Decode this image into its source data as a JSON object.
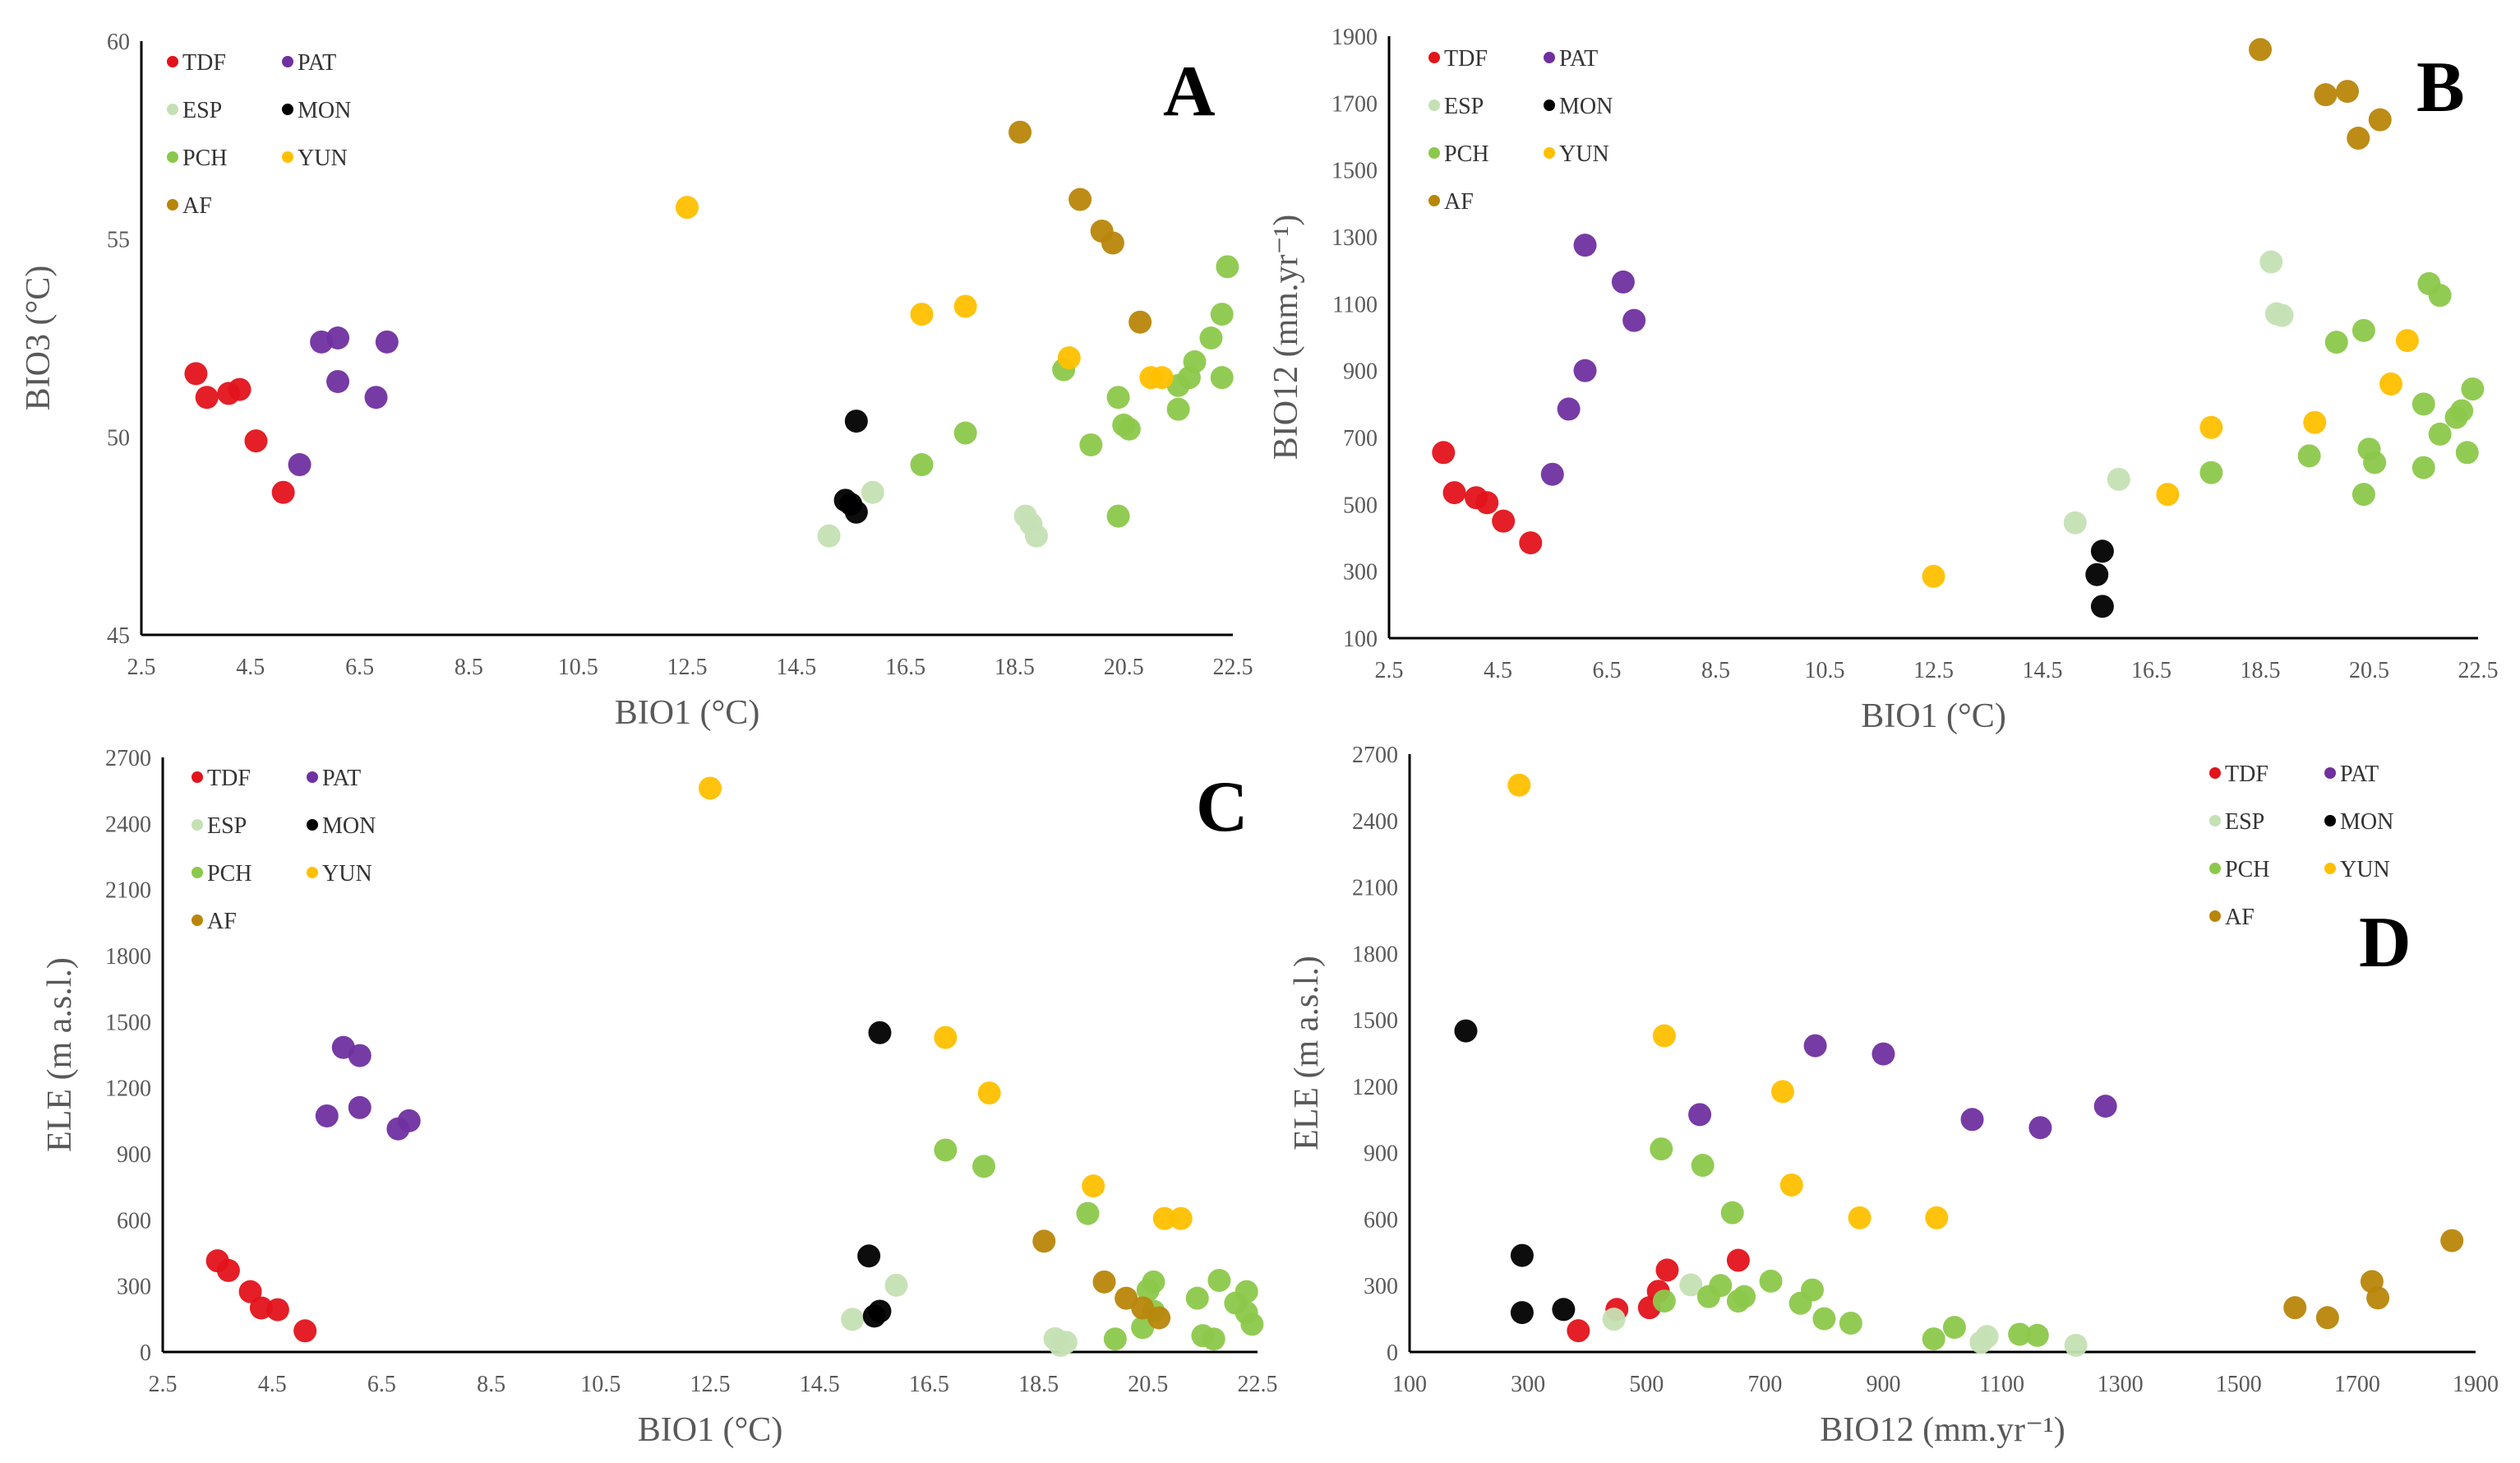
{
  "legend": [
    {
      "key": "TDF",
      "label": "TDF",
      "color": "#e3131b"
    },
    {
      "key": "PAT",
      "label": "PAT",
      "color": "#7030a0"
    },
    {
      "key": "ESP",
      "label": "ESP",
      "color": "#c5e0b4"
    },
    {
      "key": "MON",
      "label": "MON",
      "color": "#000000"
    },
    {
      "key": "PCH",
      "label": "PCH",
      "color": "#8cc84b"
    },
    {
      "key": "YUN",
      "label": "YUN",
      "color": "#ffc000"
    },
    {
      "key": "AF",
      "label": "AF",
      "color": "#b8860b"
    }
  ],
  "chart_data": [
    {
      "type": "scatter",
      "panel": "A",
      "xlabel": "BIO1 (°C)",
      "ylabel": "BIO3 (°C)",
      "xlim": [
        2.5,
        22.5
      ],
      "ylim": [
        45,
        60
      ],
      "xticks": [
        "2.5",
        "4.5",
        "6.5",
        "8.5",
        "10.5",
        "12.5",
        "14.5",
        "16.5",
        "18.5",
        "20.5",
        "22.5"
      ],
      "yticks": [
        "45",
        "50",
        "55",
        "60"
      ],
      "legend_position": "top-left",
      "series": {
        "TDF": [
          [
            3.5,
            51.6
          ],
          [
            3.7,
            51.0
          ],
          [
            4.1,
            51.1
          ],
          [
            4.3,
            51.2
          ],
          [
            4.6,
            49.9
          ],
          [
            5.1,
            48.6
          ]
        ],
        "PAT": [
          [
            5.4,
            49.3
          ],
          [
            5.8,
            52.4
          ],
          [
            6.1,
            52.5
          ],
          [
            6.1,
            51.4
          ],
          [
            6.8,
            51.0
          ],
          [
            7.0,
            52.4
          ]
        ],
        "ESP": [
          [
            15.1,
            47.5
          ],
          [
            15.9,
            48.6
          ],
          [
            18.7,
            48.0
          ],
          [
            18.8,
            47.8
          ],
          [
            18.9,
            47.5
          ]
        ],
        "MON": [
          [
            15.4,
            48.4
          ],
          [
            15.5,
            48.3
          ],
          [
            15.6,
            48.1
          ],
          [
            15.6,
            50.4
          ]
        ],
        "PCH": [
          [
            16.8,
            49.3
          ],
          [
            17.6,
            50.1
          ],
          [
            19.4,
            51.7
          ],
          [
            19.9,
            49.8
          ],
          [
            20.4,
            51.0
          ],
          [
            20.4,
            48.0
          ],
          [
            20.5,
            50.3
          ],
          [
            20.6,
            50.2
          ],
          [
            21.5,
            50.7
          ],
          [
            21.5,
            51.3
          ],
          [
            21.7,
            51.5
          ],
          [
            21.8,
            51.9
          ],
          [
            22.1,
            52.5
          ],
          [
            22.3,
            53.1
          ],
          [
            22.3,
            51.5
          ],
          [
            22.4,
            54.3
          ]
        ],
        "YUN": [
          [
            12.5,
            55.8
          ],
          [
            16.8,
            53.1
          ],
          [
            17.6,
            53.3
          ],
          [
            19.5,
            52.0
          ],
          [
            21.0,
            51.5
          ],
          [
            21.2,
            51.5
          ]
        ],
        "AF": [
          [
            18.6,
            57.7
          ],
          [
            19.7,
            56.0
          ],
          [
            20.1,
            55.2
          ],
          [
            20.3,
            54.9
          ],
          [
            20.8,
            52.9
          ]
        ]
      }
    },
    {
      "type": "scatter",
      "panel": "B",
      "xlabel": "BIO1 (°C)",
      "ylabel": "BIO12 (mm.yr⁻¹)",
      "xlim": [
        2.5,
        22.5
      ],
      "ylim": [
        100,
        1900
      ],
      "xticks": [
        "2.5",
        "4.5",
        "6.5",
        "8.5",
        "10.5",
        "12.5",
        "14.5",
        "16.5",
        "18.5",
        "20.5",
        "22.5"
      ],
      "yticks": [
        "100",
        "300",
        "500",
        "700",
        "900",
        "1100",
        "1300",
        "1500",
        "1700",
        "1900"
      ],
      "legend_position": "top-left",
      "series": {
        "TDF": [
          [
            3.5,
            655
          ],
          [
            3.7,
            535
          ],
          [
            4.1,
            520
          ],
          [
            4.3,
            505
          ],
          [
            4.6,
            450
          ],
          [
            5.1,
            385
          ]
        ],
        "PAT": [
          [
            5.5,
            590
          ],
          [
            5.8,
            785
          ],
          [
            6.1,
            900
          ],
          [
            6.1,
            1275
          ],
          [
            6.8,
            1165
          ],
          [
            7.0,
            1050
          ]
        ],
        "ESP": [
          [
            15.1,
            445
          ],
          [
            15.9,
            575
          ],
          [
            18.7,
            1225
          ],
          [
            18.8,
            1070
          ],
          [
            18.9,
            1065
          ]
        ],
        "MON": [
          [
            15.5,
            290
          ],
          [
            15.6,
            360
          ],
          [
            15.6,
            195
          ]
        ],
        "PCH": [
          [
            17.6,
            595
          ],
          [
            19.4,
            645
          ],
          [
            19.9,
            985
          ],
          [
            20.4,
            1020
          ],
          [
            20.4,
            530
          ],
          [
            20.5,
            665
          ],
          [
            20.6,
            625
          ],
          [
            21.5,
            800
          ],
          [
            21.5,
            610
          ],
          [
            21.6,
            1160
          ],
          [
            21.8,
            1125
          ],
          [
            21.8,
            710
          ],
          [
            22.1,
            760
          ],
          [
            22.2,
            780
          ],
          [
            22.3,
            655
          ],
          [
            22.4,
            845
          ]
        ],
        "YUN": [
          [
            12.5,
            285
          ],
          [
            16.8,
            530
          ],
          [
            17.6,
            730
          ],
          [
            19.5,
            745
          ],
          [
            20.9,
            860
          ],
          [
            21.2,
            990
          ]
        ],
        "AF": [
          [
            18.5,
            1860
          ],
          [
            19.7,
            1725
          ],
          [
            20.1,
            1735
          ],
          [
            20.3,
            1595
          ],
          [
            20.7,
            1650
          ]
        ]
      }
    },
    {
      "type": "scatter",
      "panel": "C",
      "xlabel": "BIO1 (°C)",
      "ylabel": "ELE (m a.s.l.)",
      "xlim": [
        2.5,
        22.5
      ],
      "ylim": [
        0,
        2700
      ],
      "xticks": [
        "2.5",
        "4.5",
        "6.5",
        "8.5",
        "10.5",
        "12.5",
        "14.5",
        "16.5",
        "18.5",
        "20.5",
        "22.5"
      ],
      "yticks": [
        "0",
        "300",
        "600",
        "900",
        "1200",
        "1500",
        "1800",
        "2100",
        "2400",
        "2700"
      ],
      "legend_position": "top-left",
      "series": {
        "TDF": [
          [
            3.5,
            414
          ],
          [
            3.7,
            370
          ],
          [
            4.1,
            274
          ],
          [
            4.3,
            200
          ],
          [
            4.6,
            192
          ],
          [
            5.1,
            96
          ]
        ],
        "PAT": [
          [
            5.5,
            1072
          ],
          [
            5.8,
            1383
          ],
          [
            6.1,
            1346
          ],
          [
            6.1,
            1110
          ],
          [
            6.8,
            1013
          ],
          [
            7.0,
            1050
          ]
        ],
        "ESP": [
          [
            15.1,
            148
          ],
          [
            15.9,
            303
          ],
          [
            18.8,
            60
          ],
          [
            18.9,
            30
          ],
          [
            19.0,
            44
          ]
        ],
        "MON": [
          [
            15.4,
            436
          ],
          [
            15.5,
            163
          ],
          [
            15.6,
            185
          ],
          [
            15.6,
            1450
          ]
        ],
        "PCH": [
          [
            16.8,
            917
          ],
          [
            17.5,
            843
          ],
          [
            19.4,
            629
          ],
          [
            19.9,
            59
          ],
          [
            20.4,
            111
          ],
          [
            20.5,
            281
          ],
          [
            20.6,
            185
          ],
          [
            20.6,
            318
          ],
          [
            21.4,
            244
          ],
          [
            21.5,
            74
          ],
          [
            21.7,
            59
          ],
          [
            21.8,
            325
          ],
          [
            22.1,
            222
          ],
          [
            22.3,
            274
          ],
          [
            22.3,
            178
          ],
          [
            22.4,
            126
          ]
        ],
        "YUN": [
          [
            12.5,
            2560
          ],
          [
            16.8,
            1428
          ],
          [
            17.6,
            1176
          ],
          [
            19.5,
            754
          ],
          [
            20.8,
            606
          ],
          [
            21.1,
            606
          ]
        ],
        "AF": [
          [
            18.6,
            503
          ],
          [
            19.7,
            318
          ],
          [
            20.1,
            244
          ],
          [
            20.4,
            200
          ],
          [
            20.7,
            155
          ]
        ]
      }
    },
    {
      "type": "scatter",
      "panel": "D",
      "xlabel": "BIO12 (mm.yr⁻¹)",
      "ylabel": "ELE (m a.s.l.)",
      "xlim": [
        100,
        1900
      ],
      "ylim": [
        0,
        2700
      ],
      "xticks": [
        "100",
        "300",
        "500",
        "700",
        "900",
        "1100",
        "1300",
        "1500",
        "1700",
        "1900"
      ],
      "yticks": [
        "0",
        "300",
        "600",
        "900",
        "1200",
        "1500",
        "1800",
        "2100",
        "2400",
        "2700"
      ],
      "legend_position": "top-right",
      "series": {
        "TDF": [
          [
            385,
            96
          ],
          [
            450,
            192
          ],
          [
            505,
            200
          ],
          [
            520,
            274
          ],
          [
            535,
            370
          ],
          [
            655,
            414
          ]
        ],
        "PAT": [
          [
            590,
            1072
          ],
          [
            785,
            1383
          ],
          [
            900,
            1346
          ],
          [
            1050,
            1050
          ],
          [
            1165,
            1013
          ],
          [
            1275,
            1110
          ]
        ],
        "ESP": [
          [
            445,
            148
          ],
          [
            575,
            303
          ],
          [
            1065,
            44
          ],
          [
            1075,
            70
          ],
          [
            1225,
            30
          ]
        ],
        "MON": [
          [
            195,
            1450
          ],
          [
            290,
            436
          ],
          [
            290,
            178
          ],
          [
            360,
            192
          ]
        ],
        "PCH": [
          [
            525,
            917
          ],
          [
            595,
            843
          ],
          [
            645,
            629
          ],
          [
            985,
            59
          ],
          [
            1020,
            111
          ],
          [
            665,
            250
          ],
          [
            625,
            300
          ],
          [
            605,
            250
          ],
          [
            710,
            320
          ],
          [
            760,
            220
          ],
          [
            780,
            280
          ],
          [
            800,
            150
          ],
          [
            845,
            130
          ],
          [
            1130,
            80
          ],
          [
            1160,
            75
          ],
          [
            655,
            230
          ],
          [
            530,
            230
          ]
        ],
        "YUN": [
          [
            285,
            2560
          ],
          [
            530,
            1428
          ],
          [
            730,
            1176
          ],
          [
            745,
            754
          ],
          [
            860,
            606
          ],
          [
            990,
            606
          ]
        ],
        "AF": [
          [
            1860,
            503
          ],
          [
            1725,
            318
          ],
          [
            1735,
            244
          ],
          [
            1595,
            200
          ],
          [
            1650,
            155
          ]
        ]
      }
    }
  ]
}
